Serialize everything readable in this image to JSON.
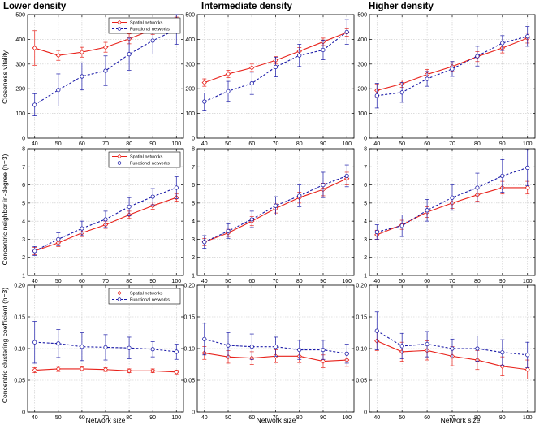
{
  "figure": {
    "column_titles": [
      "Lower density",
      "Intermediate density",
      "Higher density"
    ],
    "row_ylabels": [
      "Closeness vitality",
      "Concentric neighbor in-degree (h=3)",
      "Concentric clustering coefficient (h=3)"
    ],
    "xlabel": "Network size",
    "legend_labels": [
      "Spatial networks",
      "Functional networks"
    ],
    "colors": {
      "spatial": "#e8221b",
      "functional": "#1a1aa8",
      "axis": "#000000",
      "grid": "#c8c8c8"
    }
  },
  "chart_data": [
    {
      "type": "line",
      "row": 0,
      "col": 0,
      "title": "Lower density",
      "ylabel": "Closeness vitality",
      "xlabel": "",
      "x": [
        40,
        50,
        60,
        70,
        80,
        90,
        100
      ],
      "xlim": [
        37,
        103
      ],
      "ylim": [
        0,
        500
      ],
      "yticks": [
        0,
        100,
        200,
        300,
        400,
        500
      ],
      "grid": true,
      "legend": "top-right",
      "series": [
        {
          "name": "Spatial networks",
          "values": [
            365,
            335,
            348,
            368,
            402,
            440,
            475
          ],
          "errors": [
            70,
            20,
            20,
            20,
            20,
            20,
            15
          ]
        },
        {
          "name": "Functional networks",
          "values": [
            135,
            195,
            250,
            273,
            340,
            395,
            440
          ],
          "errors": [
            45,
            65,
            55,
            60,
            65,
            55,
            60
          ]
        }
      ]
    },
    {
      "type": "line",
      "row": 0,
      "col": 1,
      "title": "Intermediate density",
      "ylabel": "",
      "xlabel": "",
      "x": [
        40,
        50,
        60,
        70,
        80,
        90,
        100
      ],
      "xlim": [
        37,
        103
      ],
      "ylim": [
        0,
        500
      ],
      "yticks": [
        0,
        100,
        200,
        300,
        400,
        500
      ],
      "grid": true,
      "legend": "none",
      "series": [
        {
          "name": "Spatial networks",
          "values": [
            225,
            260,
            285,
            315,
            352,
            390,
            428
          ],
          "errors": [
            15,
            15,
            15,
            15,
            15,
            15,
            15
          ]
        },
        {
          "name": "Functional networks",
          "values": [
            148,
            190,
            222,
            288,
            335,
            357,
            430
          ],
          "errors": [
            35,
            40,
            45,
            40,
            45,
            40,
            50
          ]
        }
      ]
    },
    {
      "type": "line",
      "row": 0,
      "col": 2,
      "title": "Higher density",
      "ylabel": "",
      "xlabel": "",
      "x": [
        40,
        50,
        60,
        70,
        80,
        90,
        100
      ],
      "xlim": [
        37,
        103
      ],
      "ylim": [
        0,
        500
      ],
      "yticks": [
        0,
        100,
        200,
        300,
        400,
        500
      ],
      "grid": true,
      "legend": "none",
      "series": [
        {
          "name": "Spatial networks",
          "values": [
            193,
            220,
            258,
            290,
            330,
            365,
            405
          ],
          "errors": [
            25,
            15,
            20,
            20,
            20,
            20,
            20
          ]
        },
        {
          "name": "Functional networks",
          "values": [
            172,
            185,
            240,
            280,
            332,
            385,
            412
          ],
          "errors": [
            50,
            40,
            30,
            30,
            40,
            30,
            40
          ]
        }
      ]
    },
    {
      "type": "line",
      "row": 1,
      "col": 0,
      "title": "",
      "ylabel": "Concentric neighbor in-degree (h=3)",
      "xlabel": "",
      "x": [
        40,
        50,
        60,
        70,
        80,
        90,
        100
      ],
      "xlim": [
        37,
        103
      ],
      "ylim": [
        1,
        8
      ],
      "yticks": [
        1,
        2,
        3,
        4,
        5,
        6,
        7,
        8
      ],
      "grid": true,
      "legend": "top-right",
      "series": [
        {
          "name": "Spatial networks",
          "values": [
            2.35,
            2.8,
            3.35,
            3.8,
            4.35,
            4.85,
            5.3
          ],
          "errors": [
            0.2,
            0.2,
            0.2,
            0.2,
            0.2,
            0.2,
            0.2
          ]
        },
        {
          "name": "Functional networks",
          "values": [
            2.35,
            3.0,
            3.6,
            4.1,
            4.8,
            5.35,
            5.85
          ],
          "errors": [
            0.25,
            0.35,
            0.4,
            0.45,
            0.5,
            0.45,
            0.6
          ]
        }
      ]
    },
    {
      "type": "line",
      "row": 1,
      "col": 1,
      "title": "",
      "ylabel": "",
      "xlabel": "",
      "x": [
        40,
        50,
        60,
        70,
        80,
        90,
        100
      ],
      "xlim": [
        37,
        103
      ],
      "ylim": [
        1,
        8
      ],
      "yticks": [
        1,
        2,
        3,
        4,
        5,
        6,
        7,
        8
      ],
      "grid": true,
      "legend": "none",
      "series": [
        {
          "name": "Spatial networks",
          "values": [
            2.85,
            3.35,
            4.0,
            4.7,
            5.3,
            5.75,
            6.35
          ],
          "errors": [
            0.2,
            0.2,
            0.25,
            0.25,
            0.3,
            0.35,
            0.35
          ]
        },
        {
          "name": "Functional networks",
          "values": [
            2.85,
            3.45,
            4.1,
            4.85,
            5.4,
            6.0,
            6.5
          ],
          "errors": [
            0.35,
            0.4,
            0.45,
            0.5,
            0.6,
            0.7,
            0.6
          ]
        }
      ]
    },
    {
      "type": "line",
      "row": 1,
      "col": 2,
      "title": "",
      "ylabel": "",
      "xlabel": "",
      "x": [
        40,
        50,
        60,
        70,
        80,
        90,
        100
      ],
      "xlim": [
        37,
        103
      ],
      "ylim": [
        1,
        8
      ],
      "yticks": [
        1,
        2,
        3,
        4,
        5,
        6,
        7,
        8
      ],
      "grid": true,
      "legend": "none",
      "series": [
        {
          "name": "Spatial networks",
          "values": [
            3.25,
            3.8,
            4.5,
            5.0,
            5.45,
            5.85,
            5.85
          ],
          "errors": [
            0.25,
            0.25,
            0.3,
            0.3,
            0.35,
            0.35,
            0.35
          ]
        },
        {
          "name": "Functional networks",
          "values": [
            3.4,
            3.75,
            4.6,
            5.3,
            5.85,
            6.5,
            6.95
          ],
          "errors": [
            0.4,
            0.6,
            0.6,
            0.7,
            0.8,
            0.9,
            1.0
          ]
        }
      ]
    },
    {
      "type": "line",
      "row": 2,
      "col": 0,
      "title": "",
      "ylabel": "Concentric clustering coefficient (h=3)",
      "xlabel": "Network size",
      "x": [
        40,
        50,
        60,
        70,
        80,
        90,
        100
      ],
      "xlim": [
        37,
        103
      ],
      "ylim": [
        0,
        0.2
      ],
      "yticks": [
        0,
        0.05,
        0.1,
        0.15,
        0.2
      ],
      "ytick_labels": [
        "0",
        "0.05",
        "0.10",
        "0.15",
        "0.20"
      ],
      "grid": true,
      "legend": "top-right",
      "series": [
        {
          "name": "Spatial networks",
          "values": [
            0.066,
            0.068,
            0.068,
            0.067,
            0.065,
            0.065,
            0.063
          ],
          "errors": [
            0.004,
            0.004,
            0.003,
            0.003,
            0.003,
            0.003,
            0.003
          ]
        },
        {
          "name": "Functional networks",
          "values": [
            0.11,
            0.108,
            0.103,
            0.102,
            0.101,
            0.099,
            0.095
          ],
          "errors": [
            0.033,
            0.022,
            0.022,
            0.02,
            0.017,
            0.012,
            0.012
          ]
        }
      ]
    },
    {
      "type": "line",
      "row": 2,
      "col": 1,
      "title": "",
      "ylabel": "",
      "xlabel": "Network size",
      "x": [
        40,
        50,
        60,
        70,
        80,
        90,
        100
      ],
      "xlim": [
        37,
        103
      ],
      "ylim": [
        0,
        0.2
      ],
      "yticks": [
        0,
        0.05,
        0.1,
        0.15,
        0.2
      ],
      "ytick_labels": [
        "0",
        "0.05",
        "0.10",
        "0.15",
        "0.20"
      ],
      "grid": true,
      "legend": "none",
      "series": [
        {
          "name": "Spatial networks",
          "values": [
            0.093,
            0.087,
            0.085,
            0.088,
            0.088,
            0.08,
            0.082
          ],
          "errors": [
            0.01,
            0.01,
            0.01,
            0.01,
            0.01,
            0.01,
            0.01
          ]
        },
        {
          "name": "Functional networks",
          "values": [
            0.115,
            0.105,
            0.103,
            0.103,
            0.098,
            0.098,
            0.092
          ],
          "errors": [
            0.025,
            0.02,
            0.02,
            0.015,
            0.015,
            0.015,
            0.015
          ]
        }
      ]
    },
    {
      "type": "line",
      "row": 2,
      "col": 2,
      "title": "",
      "ylabel": "",
      "xlabel": "Network size",
      "x": [
        40,
        50,
        60,
        70,
        80,
        90,
        100
      ],
      "xlim": [
        37,
        103
      ],
      "ylim": [
        0,
        0.2
      ],
      "yticks": [
        0,
        0.05,
        0.1,
        0.15,
        0.2
      ],
      "ytick_labels": [
        "0",
        "0.05",
        "0.10",
        "0.15",
        "0.20"
      ],
      "grid": true,
      "legend": "none",
      "series": [
        {
          "name": "Spatial networks",
          "values": [
            0.112,
            0.095,
            0.097,
            0.088,
            0.082,
            0.072,
            0.067
          ],
          "errors": [
            0.015,
            0.015,
            0.015,
            0.015,
            0.015,
            0.015,
            0.015
          ]
        },
        {
          "name": "Functional networks",
          "values": [
            0.128,
            0.104,
            0.107,
            0.1,
            0.1,
            0.094,
            0.09
          ],
          "errors": [
            0.03,
            0.02,
            0.02,
            0.015,
            0.02,
            0.02,
            0.02
          ]
        }
      ]
    }
  ]
}
